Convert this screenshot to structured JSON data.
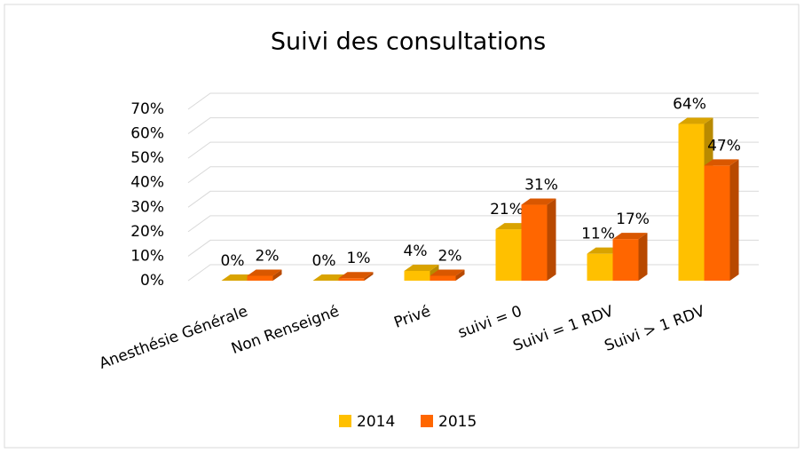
{
  "chart_data": {
    "type": "bar3d",
    "title": "Suivi des consultations",
    "categories": [
      "Anesthésie Générale",
      "Non Renseigné",
      "Privé",
      "suivi = 0",
      "Suivi = 1 RDV",
      "Suivi > 1 RDV"
    ],
    "series": [
      {
        "name": "2014",
        "color": "#ffc000",
        "values": [
          0,
          0,
          4,
          21,
          11,
          64
        ],
        "value_labels": [
          "0%",
          "0%",
          "4%",
          "21%",
          "11%",
          "64%"
        ]
      },
      {
        "name": "2015",
        "color": "#ff6600",
        "values": [
          2,
          1,
          2,
          31,
          17,
          47
        ],
        "value_labels": [
          "2%",
          "1%",
          "2%",
          "31%",
          "17%",
          "47%"
        ]
      }
    ],
    "ylim": [
      0,
      70
    ],
    "yticks": [
      {
        "value": 0,
        "label": "0%"
      },
      {
        "value": 10,
        "label": "10%"
      },
      {
        "value": 20,
        "label": "20%"
      },
      {
        "value": 30,
        "label": "30%"
      },
      {
        "value": 40,
        "label": "40%"
      },
      {
        "value": 50,
        "label": "50%"
      },
      {
        "value": 60,
        "label": "60%"
      },
      {
        "value": 70,
        "label": "70%"
      }
    ],
    "grid": true,
    "legend": "bottom"
  }
}
